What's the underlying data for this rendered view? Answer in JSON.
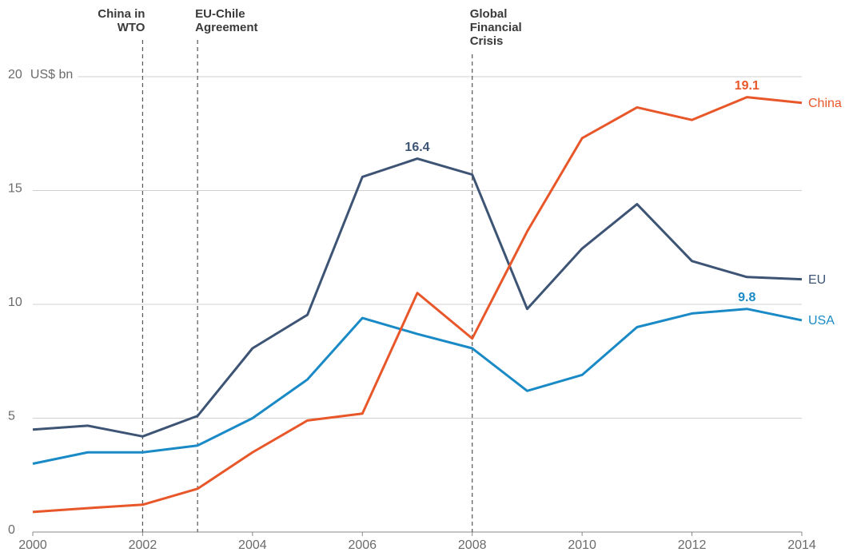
{
  "chart_data": {
    "type": "line",
    "y_label": "US$ bn",
    "x": [
      2000,
      2001,
      2002,
      2003,
      2004,
      2005,
      2006,
      2007,
      2008,
      2009,
      2010,
      2011,
      2012,
      2013,
      2014
    ],
    "series": [
      {
        "name": "EU",
        "color": "#3d5475",
        "values": [
          4.5,
          4.67,
          4.2,
          5.1,
          8.07,
          9.54,
          15.6,
          16.4,
          15.7,
          9.8,
          12.45,
          14.4,
          11.9,
          11.2,
          11.1
        ],
        "value_labels": [
          null,
          null,
          null,
          null,
          null,
          null,
          null,
          "16.4",
          null,
          null,
          null,
          null,
          null,
          null,
          null
        ]
      },
      {
        "name": "USA",
        "color": "#1a8ac6",
        "values": [
          3.0,
          3.5,
          3.5,
          3.8,
          5.0,
          6.7,
          9.4,
          8.7,
          8.07,
          6.2,
          6.9,
          9.0,
          9.6,
          9.8,
          9.3
        ],
        "value_labels": [
          null,
          null,
          null,
          null,
          null,
          null,
          null,
          null,
          null,
          null,
          null,
          null,
          null,
          "9.8",
          null
        ]
      },
      {
        "name": "China",
        "color": "#e8572a",
        "values": [
          0.88,
          1.05,
          1.2,
          1.9,
          3.5,
          4.9,
          5.2,
          10.5,
          8.5,
          13.2,
          17.3,
          18.65,
          18.1,
          19.1,
          18.85
        ],
        "value_labels": [
          null,
          null,
          null,
          null,
          null,
          null,
          null,
          null,
          null,
          null,
          null,
          null,
          null,
          "19.1",
          null
        ]
      }
    ],
    "xlim": [
      2000,
      2014
    ],
    "xticks": [
      2000,
      2002,
      2004,
      2006,
      2008,
      2010,
      2012,
      2014
    ],
    "ylim": [
      0,
      20
    ],
    "yticks": [
      0,
      5,
      10,
      15,
      20
    ],
    "grid": true,
    "annotations": [
      {
        "x": 2002,
        "lines": [
          "China in",
          "WTO"
        ],
        "align": "right"
      },
      {
        "x": 2003,
        "lines": [
          "EU-Chile",
          "Agreement"
        ],
        "align": "left"
      },
      {
        "x": 2008,
        "lines": [
          "Global",
          "Financial",
          "Crisis"
        ],
        "align": "left"
      }
    ]
  }
}
